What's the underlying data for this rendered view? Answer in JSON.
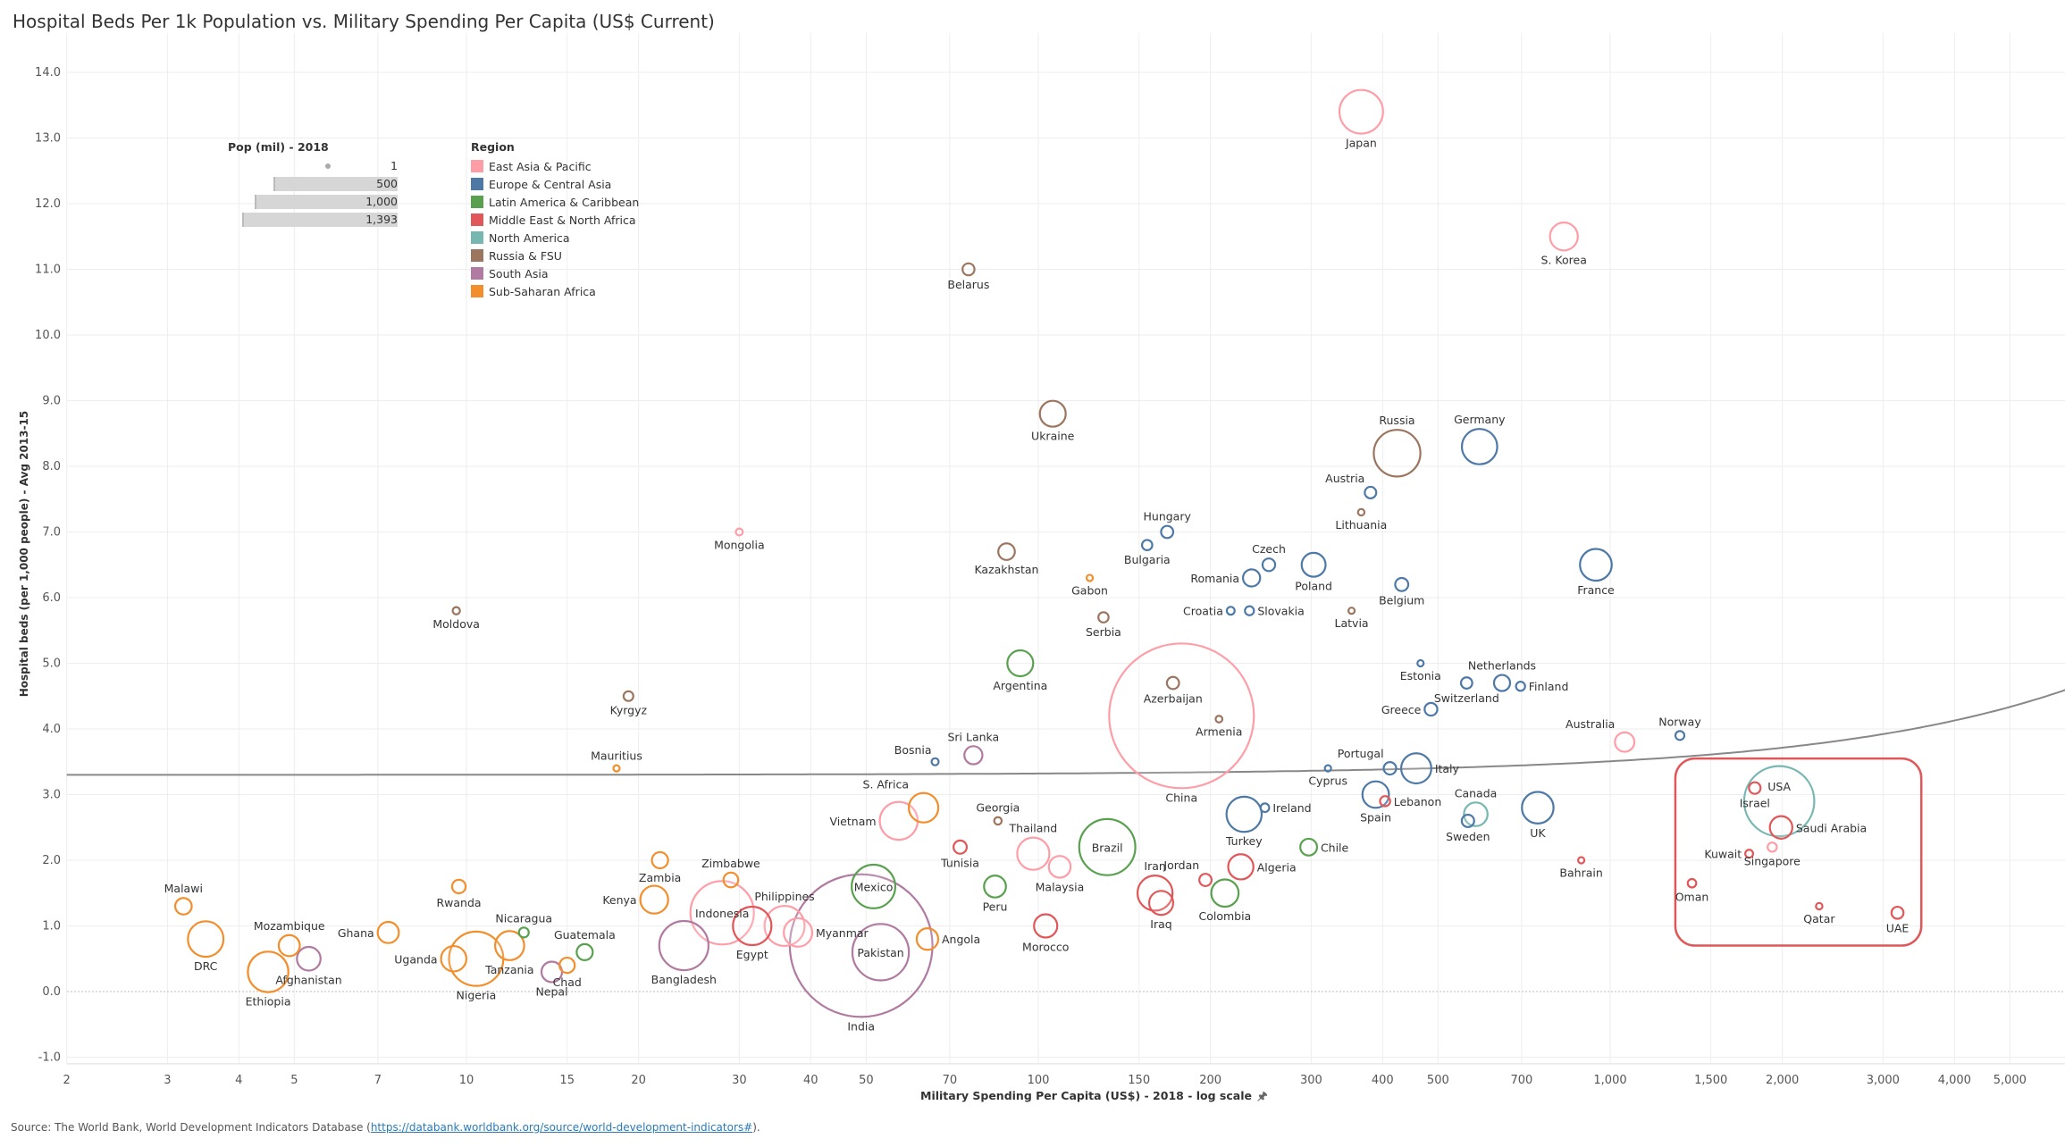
{
  "title": "Hospital Beds Per 1k Population vs. Military Spending Per Capita (US$ Current)",
  "source": {
    "prefix": "Source: The World Bank, World Development Indicators Database (",
    "link": "https://databank.worldbank.org/source/world-development-indicators#",
    "suffix": ")."
  },
  "legend": {
    "size_title": "Pop (mil) - 2018",
    "size_values": [
      "1",
      "500",
      "1,000",
      "1,393"
    ],
    "region_title": "Region",
    "regions": [
      {
        "name": "East Asia & Pacific",
        "color": "#ff9da7"
      },
      {
        "name": "Europe & Central Asia",
        "color": "#4e79a7"
      },
      {
        "name": "Latin America & Caribbean",
        "color": "#59a14f"
      },
      {
        "name": "Middle East & North Africa",
        "color": "#e15759"
      },
      {
        "name": "North America",
        "color": "#76b7b2"
      },
      {
        "name": "Russia & FSU",
        "color": "#9c755f"
      },
      {
        "name": "South Asia",
        "color": "#b07aa1"
      },
      {
        "name": "Sub-Saharan Africa",
        "color": "#f28e2b"
      }
    ]
  },
  "chart_data": {
    "type": "scatter",
    "title": "Hospital Beds Per 1k Population vs. Military Spending Per Capita (US$ Current)",
    "xlabel": "Military Spending Per Capita (US$) - 2018 - log scale",
    "ylabel": "Hospital beds (per 1,000 people) - Avg 2013-15",
    "x_scale": "log",
    "xlim": [
      2,
      6500
    ],
    "ylim": [
      -1.1,
      14.6
    ],
    "x_ticks": [
      2,
      3,
      4,
      5,
      7,
      10,
      15,
      20,
      30,
      40,
      50,
      70,
      100,
      150,
      200,
      300,
      400,
      500,
      700,
      1000,
      1500,
      2000,
      3000,
      4000,
      5000
    ],
    "x_tick_labels": [
      "2",
      "3",
      "4",
      "5",
      "7",
      "10",
      "15",
      "20",
      "30",
      "40",
      "50",
      "70",
      "100",
      "150",
      "200",
      "300",
      "400",
      "500",
      "700",
      "1,000",
      "1,500",
      "2,000",
      "3,000",
      "4,000",
      "5,000"
    ],
    "y_ticks": [
      -1,
      0,
      1,
      2,
      3,
      4,
      5,
      6,
      7,
      8,
      9,
      10,
      11,
      12,
      13,
      14
    ],
    "y_tick_labels": [
      "-1.0",
      "0.0",
      "1.0",
      "2.0",
      "3.0",
      "4.0",
      "5.0",
      "6.0",
      "7.0",
      "8.0",
      "9.0",
      "10.0",
      "11.0",
      "12.0",
      "13.0",
      "14.0"
    ],
    "grid": true,
    "size_field": "Pop (mil) - 2018",
    "color_field": "Region",
    "trend_line": {
      "type": "linear",
      "intercept": 3.3,
      "slope": 0.000207,
      "color": "#888888"
    },
    "highlight_region": {
      "x": [
        1300,
        3500
      ],
      "y": [
        0.7,
        3.55
      ],
      "color": "#e15759"
    },
    "points": [
      {
        "label": "Japan",
        "region": "East Asia & Pacific",
        "x": 367,
        "y": 13.4,
        "pop": 126.5
      },
      {
        "label": "S. Korea",
        "region": "East Asia & Pacific",
        "x": 830,
        "y": 11.5,
        "pop": 51.6
      },
      {
        "label": "Mongolia",
        "region": "East Asia & Pacific",
        "x": 30,
        "y": 7.0,
        "pop": 3.2
      },
      {
        "label": "China",
        "region": "East Asia & Pacific",
        "x": 178,
        "y": 4.2,
        "pop": 1393
      },
      {
        "label": "Australia",
        "region": "East Asia & Pacific",
        "x": 1060,
        "y": 3.8,
        "pop": 25
      },
      {
        "label": "Vietnam",
        "region": "East Asia & Pacific",
        "x": 57,
        "y": 2.6,
        "pop": 95.5
      },
      {
        "label": "Thailand",
        "region": "East Asia & Pacific",
        "x": 98,
        "y": 2.1,
        "pop": 69
      },
      {
        "label": "Malaysia",
        "region": "East Asia & Pacific",
        "x": 109,
        "y": 1.9,
        "pop": 31.5
      },
      {
        "label": "Indonesia",
        "region": "East Asia & Pacific",
        "x": 28,
        "y": 1.2,
        "pop": 267.7
      },
      {
        "label": "Philippines",
        "region": "East Asia & Pacific",
        "x": 36,
        "y": 1.0,
        "pop": 106.7
      },
      {
        "label": "Myanmar",
        "region": "East Asia & Pacific",
        "x": 38,
        "y": 0.9,
        "pop": 53.7
      },
      {
        "label": "Singapore",
        "region": "East Asia & Pacific",
        "x": 1920,
        "y": 2.2,
        "pop": 5.6
      },
      {
        "label": "Germany",
        "region": "Europe & Central Asia",
        "x": 591,
        "y": 8.3,
        "pop": 82.9
      },
      {
        "label": "Austria",
        "region": "Europe & Central Asia",
        "x": 381,
        "y": 7.6,
        "pop": 8.8
      },
      {
        "label": "Hungary",
        "region": "Europe & Central Asia",
        "x": 168,
        "y": 7.0,
        "pop": 9.8
      },
      {
        "label": "Bulgaria",
        "region": "Europe & Central Asia",
        "x": 155,
        "y": 6.8,
        "pop": 7.0
      },
      {
        "label": "Czech",
        "region": "Europe & Central Asia",
        "x": 253,
        "y": 6.5,
        "pop": 10.6
      },
      {
        "label": "Romania",
        "region": "Europe & Central Asia",
        "x": 236,
        "y": 6.3,
        "pop": 19.5
      },
      {
        "label": "Poland",
        "region": "Europe & Central Asia",
        "x": 303,
        "y": 6.5,
        "pop": 38
      },
      {
        "label": "Belgium",
        "region": "Europe & Central Asia",
        "x": 432,
        "y": 6.2,
        "pop": 11.4
      },
      {
        "label": "France",
        "region": "Europe & Central Asia",
        "x": 944,
        "y": 6.5,
        "pop": 67
      },
      {
        "label": "Croatia",
        "region": "Europe & Central Asia",
        "x": 217,
        "y": 5.8,
        "pop": 4.1
      },
      {
        "label": "Slovakia",
        "region": "Europe & Central Asia",
        "x": 234,
        "y": 5.8,
        "pop": 5.4
      },
      {
        "label": "Estonia",
        "region": "Europe & Central Asia",
        "x": 466,
        "y": 5.0,
        "pop": 1.3
      },
      {
        "label": "Netherlands",
        "region": "Europe & Central Asia",
        "x": 647,
        "y": 4.7,
        "pop": 17.2
      },
      {
        "label": "Finland",
        "region": "Europe & Central Asia",
        "x": 697,
        "y": 4.65,
        "pop": 5.5
      },
      {
        "label": "Switzerland",
        "region": "Europe & Central Asia",
        "x": 561,
        "y": 4.7,
        "pop": 8.5
      },
      {
        "label": "Greece",
        "region": "Europe & Central Asia",
        "x": 486,
        "y": 4.3,
        "pop": 10.7
      },
      {
        "label": "Norway",
        "region": "Europe & Central Asia",
        "x": 1324,
        "y": 3.9,
        "pop": 5.3
      },
      {
        "label": "Bosnia",
        "region": "Europe & Central Asia",
        "x": 66,
        "y": 3.5,
        "pop": 3.3
      },
      {
        "label": "Portugal",
        "region": "Europe & Central Asia",
        "x": 412,
        "y": 3.4,
        "pop": 10.3
      },
      {
        "label": "Italy",
        "region": "Europe & Central Asia",
        "x": 458,
        "y": 3.4,
        "pop": 60.4
      },
      {
        "label": "Cyprus",
        "region": "Europe & Central Asia",
        "x": 321,
        "y": 3.4,
        "pop": 1.2
      },
      {
        "label": "Spain",
        "region": "Europe & Central Asia",
        "x": 389,
        "y": 3.0,
        "pop": 46.7
      },
      {
        "label": "Ireland",
        "region": "Europe & Central Asia",
        "x": 249,
        "y": 2.8,
        "pop": 4.9
      },
      {
        "label": "Turkey",
        "region": "Europe & Central Asia",
        "x": 229,
        "y": 2.7,
        "pop": 82.3
      },
      {
        "label": "UK",
        "region": "Europe & Central Asia",
        "x": 747,
        "y": 2.8,
        "pop": 66.5
      },
      {
        "label": "Sweden",
        "region": "Europe & Central Asia",
        "x": 564,
        "y": 2.6,
        "pop": 10.2
      },
      {
        "label": "Argentina",
        "region": "Latin America & Caribbean",
        "x": 93,
        "y": 5.0,
        "pop": 44.5
      },
      {
        "label": "Brazil",
        "region": "Latin America & Caribbean",
        "x": 132,
        "y": 2.2,
        "pop": 209.5
      },
      {
        "label": "Chile",
        "region": "Latin America & Caribbean",
        "x": 297,
        "y": 2.2,
        "pop": 18.7
      },
      {
        "label": "Mexico",
        "region": "Latin America & Caribbean",
        "x": 51.5,
        "y": 1.6,
        "pop": 126.2
      },
      {
        "label": "Peru",
        "region": "Latin America & Caribbean",
        "x": 84,
        "y": 1.6,
        "pop": 32
      },
      {
        "label": "Colombia",
        "region": "Latin America & Caribbean",
        "x": 212,
        "y": 1.5,
        "pop": 49.6
      },
      {
        "label": "Nicaragua",
        "region": "Latin America & Caribbean",
        "x": 12.6,
        "y": 0.9,
        "pop": 6.5
      },
      {
        "label": "Guatemala",
        "region": "Latin America & Caribbean",
        "x": 16.1,
        "y": 0.6,
        "pop": 17.2
      },
      {
        "label": "Israel",
        "region": "Middle East & North Africa",
        "x": 1790,
        "y": 3.1,
        "pop": 8.9
      },
      {
        "label": "Saudi Arabia",
        "region": "Middle East & North Africa",
        "x": 1990,
        "y": 2.5,
        "pop": 33.7
      },
      {
        "label": "Kuwait",
        "region": "Middle East & North Africa",
        "x": 1750,
        "y": 2.1,
        "pop": 4.1
      },
      {
        "label": "Oman",
        "region": "Middle East & North Africa",
        "x": 1390,
        "y": 1.65,
        "pop": 4.8
      },
      {
        "label": "Qatar",
        "region": "Middle East & North Africa",
        "x": 2320,
        "y": 1.3,
        "pop": 2.8
      },
      {
        "label": "UAE",
        "region": "Middle East & North Africa",
        "x": 3180,
        "y": 1.2,
        "pop": 9.6
      },
      {
        "label": "Bahrain",
        "region": "Middle East & North Africa",
        "x": 890,
        "y": 2.0,
        "pop": 1.6
      },
      {
        "label": "Lebanon",
        "region": "Middle East & North Africa",
        "x": 404,
        "y": 2.9,
        "pop": 6.8
      },
      {
        "label": "Tunisia",
        "region": "Middle East & North Africa",
        "x": 73,
        "y": 2.2,
        "pop": 11.6
      },
      {
        "label": "Jordan",
        "region": "Middle East & North Africa",
        "x": 196,
        "y": 1.7,
        "pop": 10
      },
      {
        "label": "Algeria",
        "region": "Middle East & North Africa",
        "x": 226,
        "y": 1.9,
        "pop": 42.2
      },
      {
        "label": "Iran",
        "region": "Middle East & North Africa",
        "x": 160,
        "y": 1.5,
        "pop": 81.8
      },
      {
        "label": "Iraq",
        "region": "Middle East & North Africa",
        "x": 164,
        "y": 1.35,
        "pop": 38.4
      },
      {
        "label": "Egypt",
        "region": "Middle East & North Africa",
        "x": 31.6,
        "y": 1.0,
        "pop": 98.4
      },
      {
        "label": "Morocco",
        "region": "Middle East & North Africa",
        "x": 103,
        "y": 1.0,
        "pop": 36
      },
      {
        "label": "USA",
        "region": "North America",
        "x": 1975,
        "y": 2.9,
        "pop": 327
      },
      {
        "label": "Canada",
        "region": "North America",
        "x": 582,
        "y": 2.7,
        "pop": 37.1
      },
      {
        "label": "Russia",
        "region": "Russia & FSU",
        "x": 424,
        "y": 8.2,
        "pop": 144.5
      },
      {
        "label": "Belarus",
        "region": "Russia & FSU",
        "x": 75.5,
        "y": 11.0,
        "pop": 9.5
      },
      {
        "label": "Ukraine",
        "region": "Russia & FSU",
        "x": 106,
        "y": 8.8,
        "pop": 44.6
      },
      {
        "label": "Kazakhstan",
        "region": "Russia & FSU",
        "x": 88,
        "y": 6.7,
        "pop": 18.3
      },
      {
        "label": "Serbia",
        "region": "Russia & FSU",
        "x": 130,
        "y": 5.7,
        "pop": 7
      },
      {
        "label": "Lithuania",
        "region": "Russia & FSU",
        "x": 367,
        "y": 7.3,
        "pop": 2.8
      },
      {
        "label": "Latvia",
        "region": "Russia & FSU",
        "x": 353,
        "y": 5.8,
        "pop": 1.9
      },
      {
        "label": "Moldova",
        "region": "Russia & FSU",
        "x": 9.6,
        "y": 5.8,
        "pop": 3.5
      },
      {
        "label": "Kyrgyz",
        "region": "Russia & FSU",
        "x": 19.2,
        "y": 4.5,
        "pop": 6.3
      },
      {
        "label": "Azerbaijan",
        "region": "Russia & FSU",
        "x": 172,
        "y": 4.7,
        "pop": 9.9
      },
      {
        "label": "Armenia",
        "region": "Russia & FSU",
        "x": 207,
        "y": 4.15,
        "pop": 3
      },
      {
        "label": "Georgia",
        "region": "Russia & FSU",
        "x": 85,
        "y": 2.6,
        "pop": 3.7
      },
      {
        "label": "Sri Lanka",
        "region": "South Asia",
        "x": 77,
        "y": 3.6,
        "pop": 21.7
      },
      {
        "label": "India",
        "region": "South Asia",
        "x": 49,
        "y": 0.7,
        "pop": 1353
      },
      {
        "label": "Pakistan",
        "region": "South Asia",
        "x": 53,
        "y": 0.6,
        "pop": 212
      },
      {
        "label": "Bangladesh",
        "region": "South Asia",
        "x": 24,
        "y": 0.7,
        "pop": 161
      },
      {
        "label": "Nepal",
        "region": "South Asia",
        "x": 14.1,
        "y": 0.3,
        "pop": 28
      },
      {
        "label": "Afghanistan",
        "region": "South Asia",
        "x": 5.3,
        "y": 0.5,
        "pop": 37.2
      },
      {
        "label": "Gabon",
        "region": "Sub-Saharan Africa",
        "x": 123,
        "y": 6.3,
        "pop": 2.1
      },
      {
        "label": "Mauritius",
        "region": "Sub-Saharan Africa",
        "x": 18.3,
        "y": 3.4,
        "pop": 1.3
      },
      {
        "label": "S. Africa",
        "region": "Sub-Saharan Africa",
        "x": 63,
        "y": 2.8,
        "pop": 57.8
      },
      {
        "label": "Zimbabwe",
        "region": "Sub-Saharan Africa",
        "x": 29,
        "y": 1.7,
        "pop": 14.4
      },
      {
        "label": "Zambia",
        "region": "Sub-Saharan Africa",
        "x": 21.8,
        "y": 2.0,
        "pop": 17.4
      },
      {
        "label": "Kenya",
        "region": "Sub-Saharan Africa",
        "x": 21.3,
        "y": 1.4,
        "pop": 51.4
      },
      {
        "label": "Rwanda",
        "region": "Sub-Saharan Africa",
        "x": 9.7,
        "y": 1.6,
        "pop": 12.3
      },
      {
        "label": "Malawi",
        "region": "Sub-Saharan Africa",
        "x": 3.2,
        "y": 1.3,
        "pop": 18.1
      },
      {
        "label": "DRC",
        "region": "Sub-Saharan Africa",
        "x": 3.5,
        "y": 0.8,
        "pop": 84
      },
      {
        "label": "Mozambique",
        "region": "Sub-Saharan Africa",
        "x": 4.9,
        "y": 0.7,
        "pop": 29.5
      },
      {
        "label": "Ethiopia",
        "region": "Sub-Saharan Africa",
        "x": 4.5,
        "y": 0.3,
        "pop": 109
      },
      {
        "label": "Ghana",
        "region": "Sub-Saharan Africa",
        "x": 7.3,
        "y": 0.9,
        "pop": 29.8
      },
      {
        "label": "Uganda",
        "region": "Sub-Saharan Africa",
        "x": 9.5,
        "y": 0.5,
        "pop": 42.7
      },
      {
        "label": "Nigeria",
        "region": "Sub-Saharan Africa",
        "x": 10.4,
        "y": 0.5,
        "pop": 195.9
      },
      {
        "label": "Tanzania",
        "region": "Sub-Saharan Africa",
        "x": 11.9,
        "y": 0.7,
        "pop": 56.3
      },
      {
        "label": "Chad",
        "region": "Sub-Saharan Africa",
        "x": 15,
        "y": 0.4,
        "pop": 15.5
      },
      {
        "label": "Angola",
        "region": "Sub-Saharan Africa",
        "x": 64,
        "y": 0.8,
        "pop": 30.8
      }
    ]
  }
}
